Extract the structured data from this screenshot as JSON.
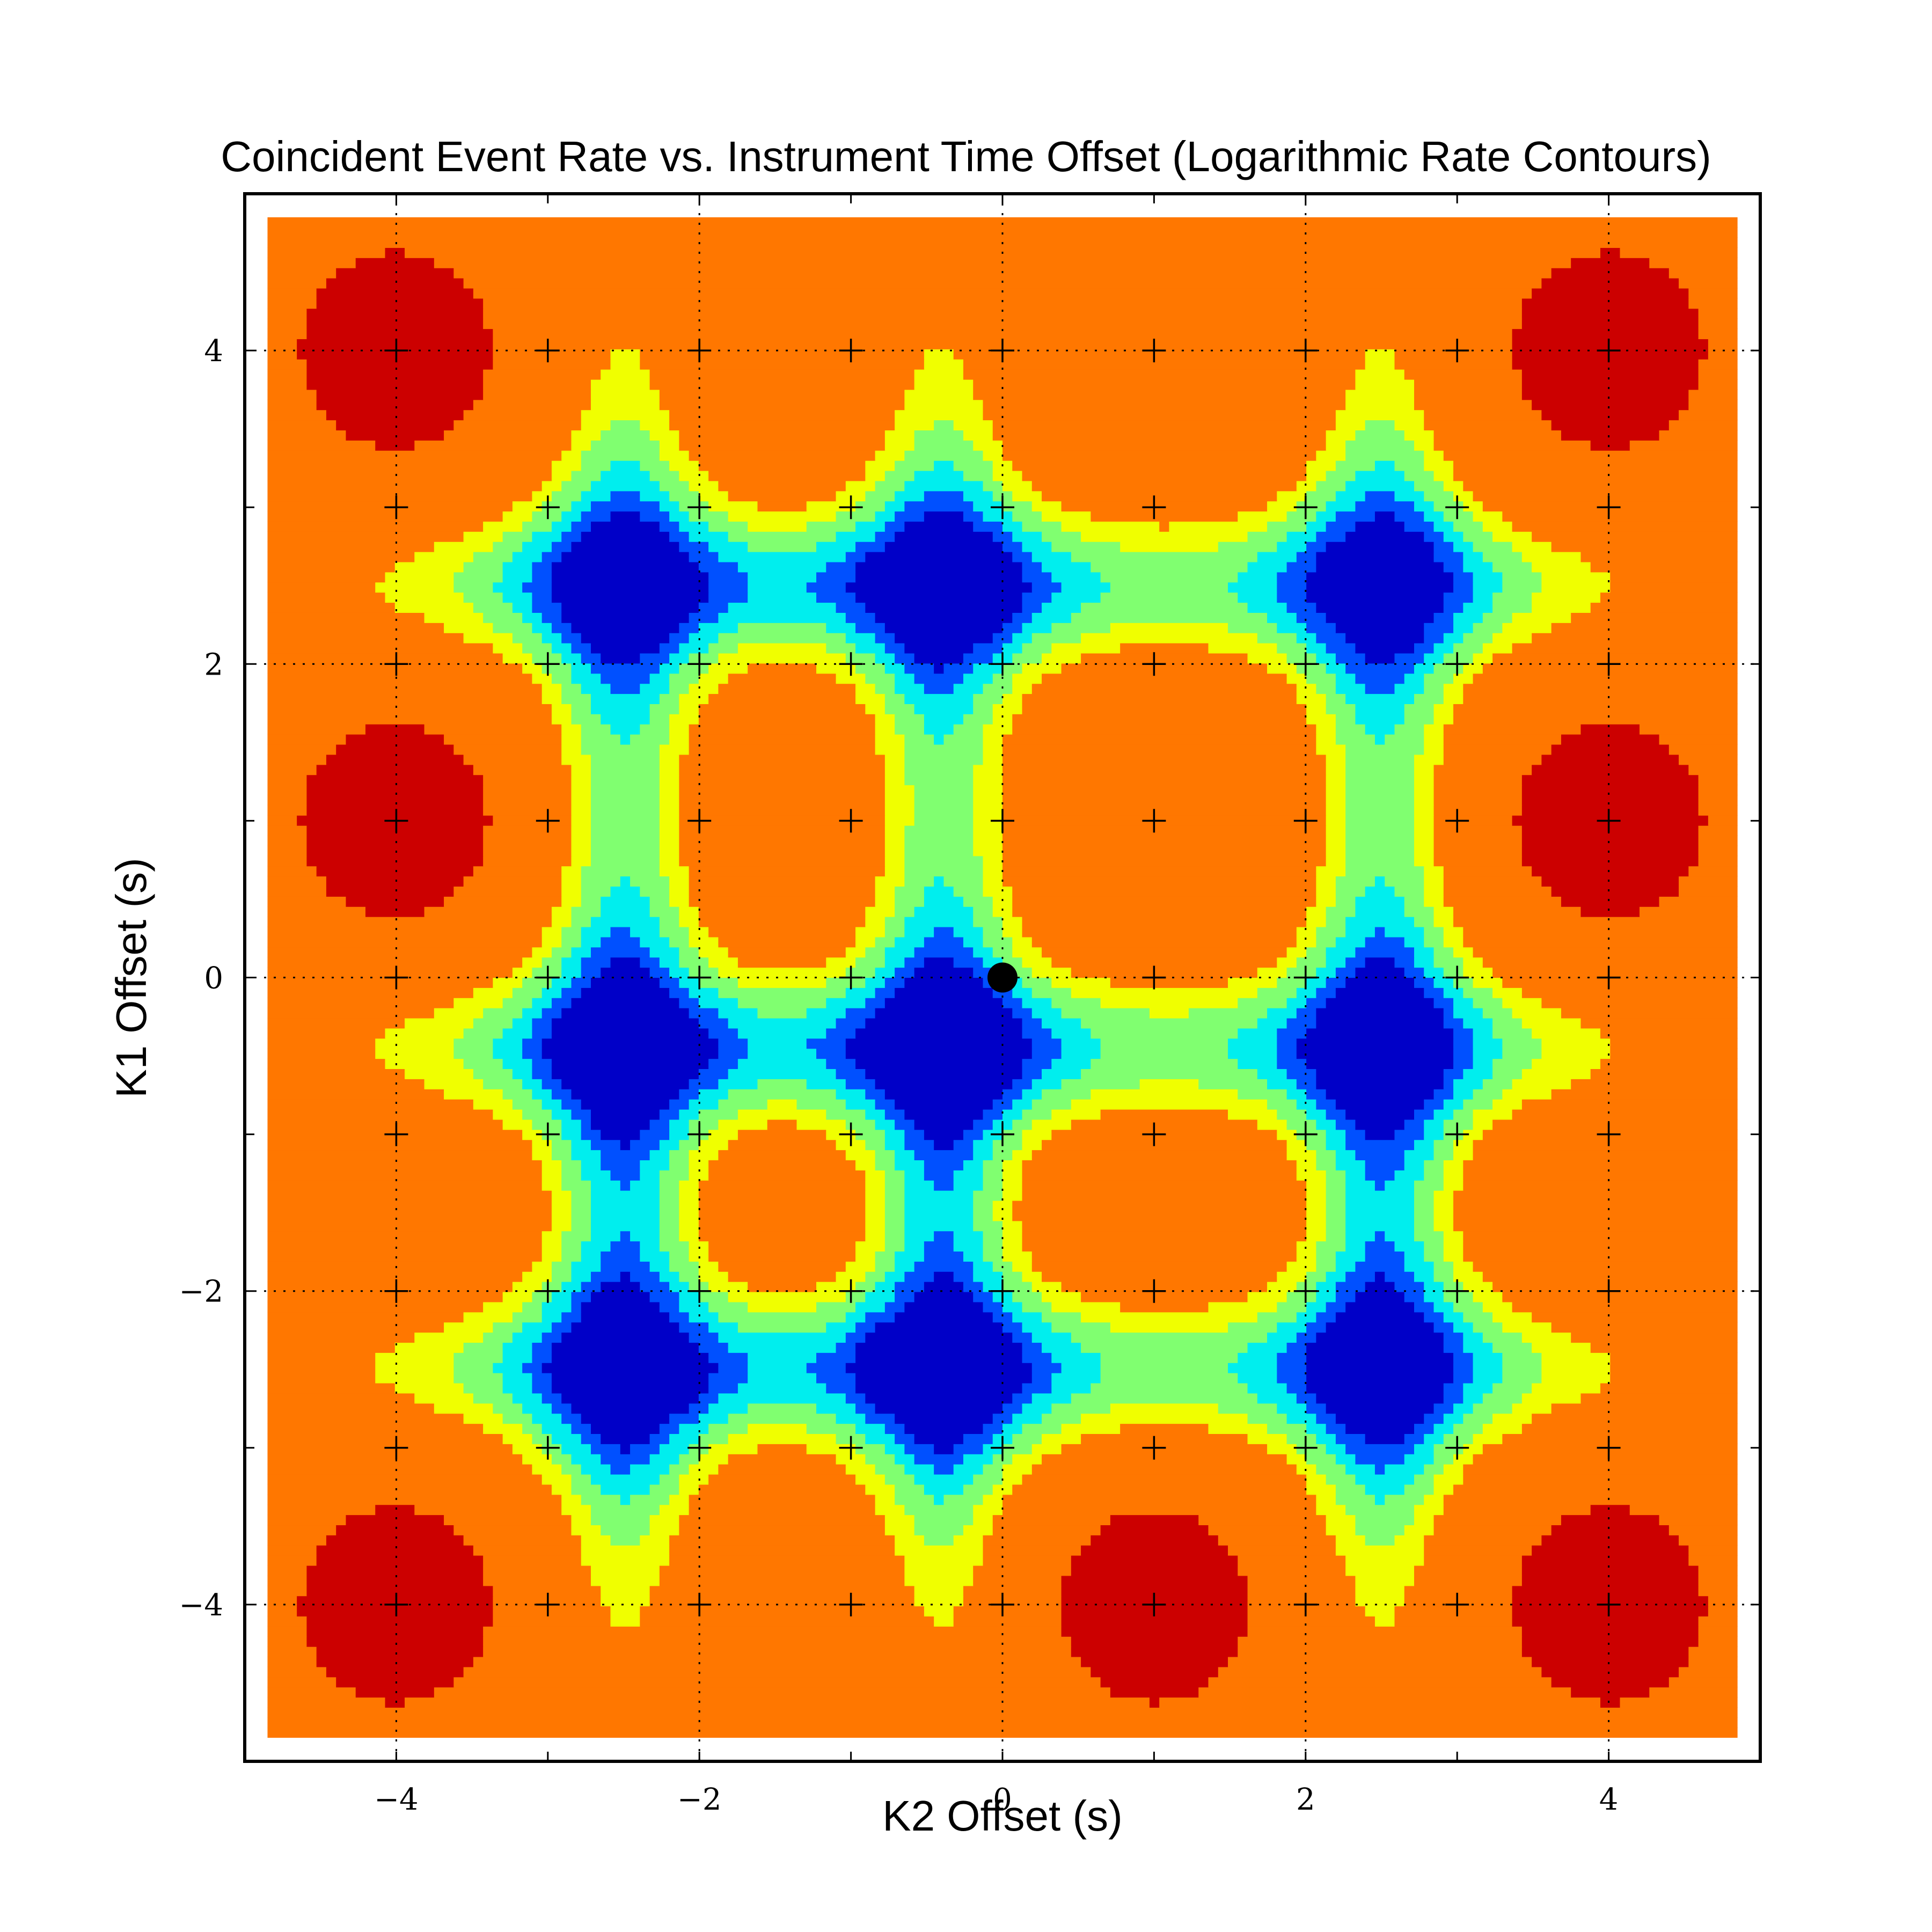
{
  "chart_data": {
    "type": "heatmap",
    "subtype": "filled-contour",
    "title": "Coincident Event Rate vs. Instrument Time Offset (Logarithmic Rate Contours)",
    "xlabel": "K2 Offset (s)",
    "ylabel": "K1 Offset (s)",
    "xlim": [
      -5,
      5
    ],
    "ylim": [
      -5,
      5
    ],
    "data_extent": [
      -4.85,
      4.85
    ],
    "x_ticks": [
      -4,
      -2,
      0,
      2,
      4
    ],
    "y_ticks": [
      -4,
      -2,
      0,
      2,
      4
    ],
    "x_tick_labels": [
      "−4",
      "−2",
      "0",
      "2",
      "4"
    ],
    "y_tick_labels": [
      "−4",
      "−2",
      "0",
      "2",
      "4"
    ],
    "grid": true,
    "grid_lines_x": [
      -4,
      -2,
      0,
      2,
      4
    ],
    "grid_lines_y": [
      -4,
      -2,
      0,
      2,
      4
    ],
    "colormap": "jet",
    "contour_levels": 7,
    "level_colors": [
      "#0000c8",
      "#0050ff",
      "#00eeee",
      "#80ff70",
      "#f0ff00",
      "#ff7700",
      "#cc0000"
    ],
    "sample_grid_x": [
      -4,
      -3,
      -2,
      -1,
      0,
      1,
      2,
      3,
      4
    ],
    "sample_grid_y": [
      -4,
      -3,
      -2,
      -1,
      0,
      1,
      2,
      3,
      4
    ],
    "sample_markers": "plus",
    "rate_minima": [
      {
        "x": -2.5,
        "y": 2.5
      },
      {
        "x": -0.4,
        "y": 2.5
      },
      {
        "x": 2.5,
        "y": 2.5
      },
      {
        "x": -2.5,
        "y": -0.45
      },
      {
        "x": -0.4,
        "y": -0.45
      },
      {
        "x": 2.5,
        "y": -0.45
      },
      {
        "x": -2.5,
        "y": -2.5
      },
      {
        "x": -0.4,
        "y": -2.5
      },
      {
        "x": 2.5,
        "y": -2.5
      }
    ],
    "rate_maxima": [
      {
        "x": -4,
        "y": 4
      },
      {
        "x": 4,
        "y": 4
      },
      {
        "x": -4,
        "y": 1
      },
      {
        "x": 4,
        "y": 1
      },
      {
        "x": -4,
        "y": -4
      },
      {
        "x": 1,
        "y": -4
      },
      {
        "x": 4,
        "y": -4
      }
    ],
    "highlight_point": {
      "x": 0,
      "y": 0,
      "color": "#000000"
    }
  }
}
